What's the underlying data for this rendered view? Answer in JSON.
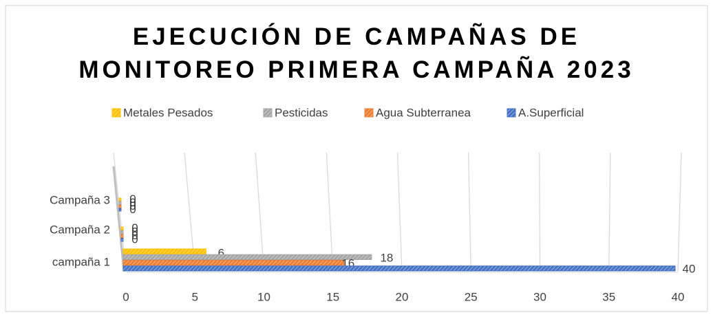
{
  "chart_data": {
    "type": "hbar",
    "title": "EJECUCIÓN DE CAMPAÑAS DE MONITOREO PRIMERA CAMPAÑA 2023",
    "categories": [
      "campaña 1",
      "Campaña 2",
      "Campaña 3"
    ],
    "series": [
      {
        "name": "Metales Pesados",
        "color": "#ffc000",
        "values": [
          6,
          0,
          0
        ]
      },
      {
        "name": "Pesticidas",
        "color": "#a5a5a5",
        "values": [
          18,
          0,
          0
        ]
      },
      {
        "name": "Agua Subterranea",
        "color": "#ed7d31",
        "values": [
          16,
          0,
          0
        ]
      },
      {
        "name": "A.Superficial",
        "color": "#4472c4",
        "values": [
          40,
          0,
          0
        ]
      }
    ],
    "xlim": [
      0,
      40
    ],
    "xticks": [
      0,
      5,
      10,
      15,
      20,
      25,
      30,
      35,
      40
    ],
    "grid": true,
    "legend": "top"
  }
}
